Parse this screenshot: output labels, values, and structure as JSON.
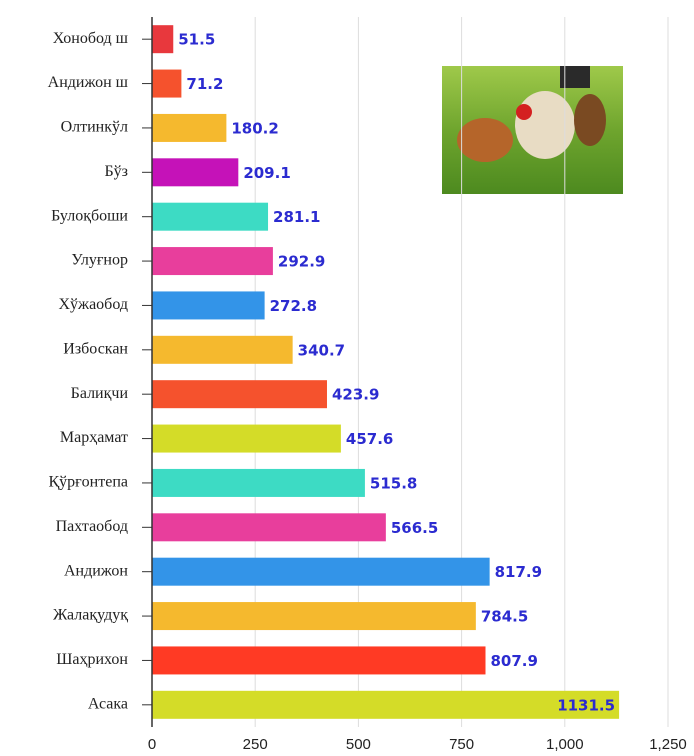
{
  "chart_data": {
    "type": "bar",
    "orientation": "horizontal",
    "categories": [
      "Хонобод ш",
      "Андижон ш",
      "Олтинкўл",
      "Бўз",
      "Булоқбоши",
      "Улуғнор",
      "Хўжаобод",
      "Избоскан",
      "Балиқчи",
      "Марҳамат",
      "Қўрғонтепа",
      "Пахтаобод",
      "Андижон",
      "Жалақудуқ",
      "Шаҳрихон",
      "Асака"
    ],
    "values": [
      51.5,
      71.2,
      180.2,
      209.1,
      281.1,
      292.9,
      272.8,
      340.7,
      423.9,
      457.6,
      515.8,
      566.5,
      817.9,
      784.5,
      807.9,
      1131.5
    ],
    "colors": [
      "#e8383d",
      "#f5522d",
      "#f5b92e",
      "#c512b8",
      "#3ddbc4",
      "#e83e9c",
      "#3394e8",
      "#f5b92e",
      "#f5522d",
      "#d4dc28",
      "#3ddbc4",
      "#e83e9c",
      "#3394e8",
      "#f5b92e",
      "#ff3a24",
      "#d4dc28"
    ],
    "xlim": [
      0,
      1250
    ],
    "xticks": [
      0,
      250,
      500,
      750,
      {
        "value": 1000,
        "label": "1,000"
      },
      {
        "value": 1250,
        "label": "1,250"
      }
    ],
    "grid": true
  }
}
